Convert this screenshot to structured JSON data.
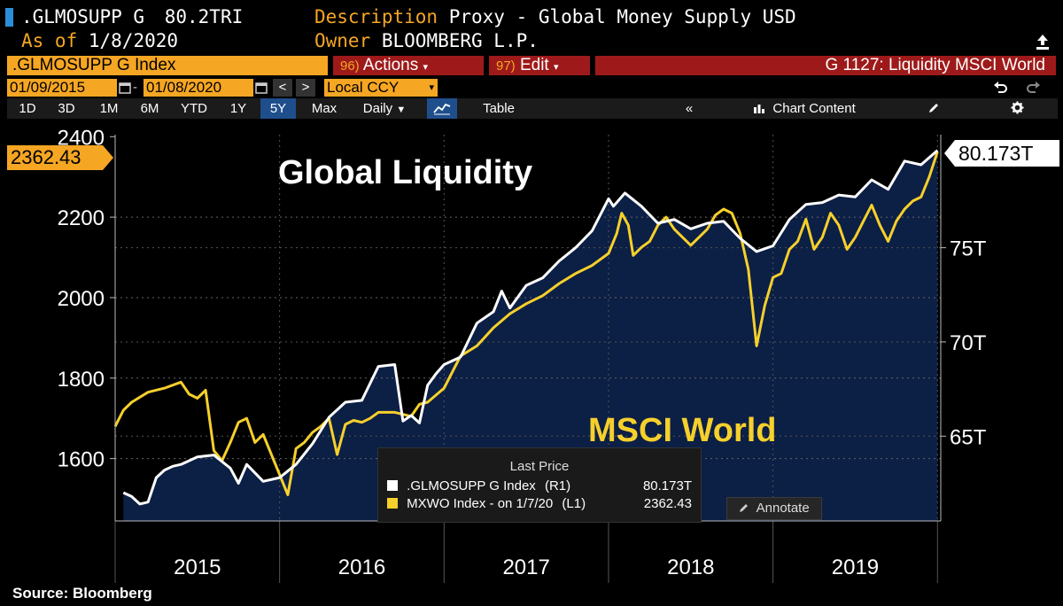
{
  "header": {
    "ticker": ".GLMOSUPP G",
    "value": "80.2TRI",
    "as_of_label": "As of",
    "as_of_date": "1/8/2020",
    "description_label": "Description",
    "description": "Proxy - Global Money Supply USD",
    "owner_label": "Owner",
    "owner": "BLOOMBERG L.P."
  },
  "toolbar": {
    "security": ".GLMOSUPP G Index",
    "actions_num": "96)",
    "actions": "Actions",
    "edit_num": "97)",
    "edit": "Edit",
    "chart_id": "G 1127: Liquidity MSCI World",
    "start_date": "01/09/2015",
    "end_date": "01/08/2020",
    "currency": "Local CCY",
    "prev": "<",
    "next": ">"
  },
  "tabs": [
    "1D",
    "3D",
    "1M",
    "6M",
    "YTD",
    "1Y",
    "5Y",
    "Max"
  ],
  "selected_tab": "5Y",
  "toolbar2": {
    "frequency": "Daily",
    "table": "Table",
    "chart_content": "Chart Content",
    "collapse": "«"
  },
  "legend": {
    "title": "Last Price",
    "row1_name": ".GLMOSUPP G Index",
    "row1_axis": "(R1)",
    "row1_value": "80.173T",
    "row2_name": "MXWO Index -  on 1/7/20",
    "row2_axis": "(L1)",
    "row2_value": "2362.43",
    "annotate": "Annotate"
  },
  "source": "Source: Bloomberg",
  "chart_data": {
    "type": "line",
    "title": "",
    "annotations": [
      "Global Liquidity",
      "MSCI World"
    ],
    "x_years": [
      "2015",
      "2016",
      "2017",
      "2018",
      "2019"
    ],
    "y_left": {
      "ticks": [
        1600,
        1800,
        2000,
        2200,
        2400
      ],
      "range": [
        1445,
        2405
      ],
      "last_label": "2362.43"
    },
    "y_right": {
      "ticks": [
        "65T",
        "70T",
        "75T"
      ],
      "tick_values": [
        65,
        70,
        75
      ],
      "range": [
        60.5,
        81.0
      ],
      "last_label": "80.173T"
    },
    "x_range": [
      2015.0,
      2020.02
    ],
    "grid": true,
    "colors": {
      "liquidity": "#ffffff",
      "msci": "#f6d02b",
      "fill": "#0c1f45",
      "tag": "#f5a623"
    },
    "series": [
      {
        "name": ".GLMOSUPP G Index",
        "axis": "right",
        "x": [
          2015.05,
          2015.1,
          2015.15,
          2015.2,
          2015.25,
          2015.3,
          2015.35,
          2015.4,
          2015.5,
          2015.6,
          2015.7,
          2015.75,
          2015.8,
          2015.9,
          2016.0,
          2016.1,
          2016.2,
          2016.3,
          2016.4,
          2016.5,
          2016.6,
          2016.7,
          2016.75,
          2016.8,
          2016.85,
          2016.9,
          2016.95,
          2017.0,
          2017.1,
          2017.2,
          2017.3,
          2017.35,
          2017.4,
          2017.5,
          2017.6,
          2017.7,
          2017.8,
          2017.9,
          2018.0,
          2018.03,
          2018.1,
          2018.2,
          2018.3,
          2018.4,
          2018.5,
          2018.6,
          2018.7,
          2018.8,
          2018.9,
          2019.0,
          2019.1,
          2019.2,
          2019.3,
          2019.4,
          2019.5,
          2019.6,
          2019.7,
          2019.8,
          2019.9,
          2020.0
        ],
        "y": [
          62.0,
          61.8,
          61.4,
          61.5,
          62.8,
          63.2,
          63.4,
          63.5,
          63.9,
          64.0,
          63.3,
          62.5,
          63.5,
          62.6,
          62.8,
          63.5,
          64.6,
          66.0,
          66.8,
          66.9,
          68.7,
          68.8,
          65.8,
          66.1,
          65.7,
          67.7,
          68.3,
          68.8,
          69.2,
          71.0,
          71.6,
          72.7,
          71.8,
          73.0,
          73.4,
          74.3,
          75.0,
          75.9,
          77.6,
          77.2,
          77.9,
          77.2,
          76.3,
          76.5,
          76.0,
          76.3,
          76.4,
          75.5,
          74.8,
          75.1,
          76.5,
          77.3,
          77.4,
          77.8,
          77.7,
          78.6,
          78.1,
          79.6,
          79.4,
          80.17
        ]
      },
      {
        "name": "MXWO Index",
        "axis": "left",
        "x": [
          2015.0,
          2015.05,
          2015.1,
          2015.2,
          2015.3,
          2015.4,
          2015.45,
          2015.5,
          2015.55,
          2015.6,
          2015.65,
          2015.7,
          2015.75,
          2015.8,
          2015.85,
          2015.9,
          2016.0,
          2016.05,
          2016.1,
          2016.15,
          2016.2,
          2016.25,
          2016.3,
          2016.35,
          2016.4,
          2016.45,
          2016.5,
          2016.55,
          2016.6,
          2016.7,
          2016.8,
          2016.85,
          2016.9,
          2017.0,
          2017.1,
          2017.2,
          2017.3,
          2017.4,
          2017.5,
          2017.6,
          2017.7,
          2017.8,
          2017.9,
          2018.0,
          2018.05,
          2018.08,
          2018.12,
          2018.15,
          2018.2,
          2018.25,
          2018.3,
          2018.35,
          2018.4,
          2018.5,
          2018.6,
          2018.65,
          2018.7,
          2018.75,
          2018.8,
          2018.85,
          2018.9,
          2018.95,
          2019.0,
          2019.05,
          2019.1,
          2019.15,
          2019.2,
          2019.25,
          2019.3,
          2019.35,
          2019.4,
          2019.45,
          2019.5,
          2019.55,
          2019.6,
          2019.65,
          2019.7,
          2019.75,
          2019.8,
          2019.85,
          2019.9,
          2019.95,
          2020.0
        ],
        "y": [
          1680,
          1720,
          1740,
          1765,
          1775,
          1790,
          1760,
          1750,
          1770,
          1620,
          1595,
          1640,
          1690,
          1700,
          1640,
          1660,
          1560,
          1510,
          1625,
          1640,
          1665,
          1680,
          1700,
          1610,
          1685,
          1695,
          1690,
          1700,
          1715,
          1715,
          1705,
          1735,
          1740,
          1775,
          1855,
          1880,
          1925,
          1960,
          1985,
          2005,
          2035,
          2060,
          2080,
          2110,
          2160,
          2210,
          2180,
          2105,
          2125,
          2140,
          2180,
          2200,
          2170,
          2130,
          2170,
          2205,
          2220,
          2210,
          2160,
          2070,
          1880,
          1980,
          2050,
          2060,
          2120,
          2140,
          2195,
          2120,
          2150,
          2210,
          2180,
          2120,
          2150,
          2190,
          2230,
          2180,
          2140,
          2190,
          2220,
          2240,
          2250,
          2300,
          2362.43
        ]
      }
    ]
  }
}
